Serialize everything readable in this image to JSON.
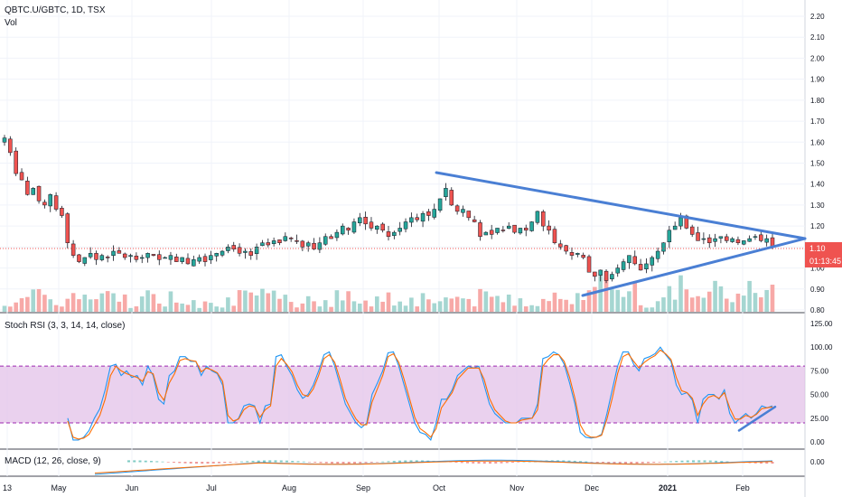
{
  "header": {
    "symbol": "QBTC.U/GBTC, 1D, TSX",
    "volume_label": "Vol"
  },
  "indicators": {
    "stoch_rsi_label": "Stoch RSI (3, 3, 14, 14, close)",
    "macd_label": "MACD (12, 26, close, 9)"
  },
  "price_tags": {
    "last_price": "1.10",
    "countdown": "01:13:45"
  },
  "colors": {
    "up": "#26a69a",
    "down": "#ef5350",
    "trendline": "#4a7fd4",
    "stoch_k": "#2196f3",
    "stoch_d": "#ff6d00",
    "stoch_band": "#e1bee7"
  },
  "chart_data": [
    {
      "type": "candlestick",
      "title": "QBTC.U/GBTC, 1D, TSX",
      "y_axis_ticks": [
        "2.20",
        "2.10",
        "2.00",
        "1.90",
        "1.80",
        "1.70",
        "1.60",
        "1.50",
        "1.40",
        "1.30",
        "1.20",
        "1.10",
        "1.00",
        "0.90",
        "0.80"
      ],
      "ylim": [
        0.8,
        2.2
      ],
      "x_axis_ticks": [
        "13",
        "May",
        "Jun",
        "Jul",
        "Aug",
        "Sep",
        "Oct",
        "Nov",
        "Dec",
        "2021",
        "Feb"
      ],
      "trendlines": [
        {
          "from": {
            "x": "Sep 28",
            "y": 1.46
          },
          "to": {
            "x": "Feb 21",
            "y": 1.15
          }
        },
        {
          "from": {
            "x": "Nov 27",
            "y": 0.87
          },
          "to": {
            "x": "Feb 21",
            "y": 1.15
          }
        }
      ],
      "last_close": 1.1
    },
    {
      "type": "line",
      "title": "Stoch RSI (3, 3, 14, 14, close)",
      "y_axis_ticks": [
        "125.00",
        "100.00",
        "75.00",
        "50.00",
        "25.00",
        "0.00"
      ],
      "ylim": [
        -5,
        125
      ],
      "bands": [
        20,
        80
      ],
      "series": [
        {
          "values": [
            25,
            2,
            2,
            5,
            12,
            25,
            35,
            55,
            80,
            82,
            70,
            75,
            68,
            70,
            60,
            80,
            70,
            45,
            40,
            70,
            75,
            90,
            90,
            85,
            85,
            70,
            80,
            75,
            72,
            60,
            20,
            20,
            25,
            38,
            40,
            38,
            20,
            38,
            40,
            90,
            92,
            80,
            70,
            55,
            46,
            50,
            60,
            75,
            92,
            95,
            80,
            60,
            40,
            30,
            20,
            15,
            20,
            50,
            62,
            75,
            94,
            95,
            80,
            60,
            40,
            20,
            10,
            8,
            2,
            20,
            45,
            45,
            55,
            70,
            75,
            80,
            78,
            80,
            60,
            40,
            30,
            25,
            20,
            20,
            20,
            25,
            25,
            25,
            40,
            88,
            90,
            95,
            92,
            82,
            62,
            40,
            10,
            5,
            4,
            5,
            8,
            30,
            55,
            80,
            95,
            95,
            82,
            75,
            88,
            90,
            93,
            100,
            92,
            85,
            60,
            50,
            52,
            44,
            20,
            45,
            50,
            50,
            45,
            55,
            30,
            20,
            25,
            30,
            25,
            30,
            38,
            36,
            38
          ]
        },
        {
          "values": [
            22,
            5,
            3,
            4,
            8,
            18,
            28,
            45,
            70,
            80,
            75,
            72,
            70,
            68,
            64,
            74,
            72,
            52,
            44,
            62,
            72,
            86,
            88,
            86,
            85,
            74,
            78,
            76,
            73,
            64,
            28,
            22,
            24,
            34,
            38,
            37,
            26,
            34,
            38,
            80,
            88,
            82,
            74,
            60,
            50,
            48,
            56,
            70,
            88,
            92,
            84,
            66,
            46,
            34,
            24,
            18,
            18,
            42,
            56,
            70,
            90,
            93,
            84,
            66,
            46,
            26,
            14,
            10,
            5,
            14,
            36,
            44,
            52,
            66,
            72,
            78,
            78,
            78,
            66,
            46,
            34,
            28,
            22,
            20,
            20,
            23,
            24,
            25,
            34,
            80,
            87,
            92,
            92,
            85,
            68,
            46,
            18,
            8,
            5,
            5,
            7,
            24,
            46,
            72,
            90,
            93,
            85,
            78,
            84,
            88,
            91,
            97,
            93,
            87,
            68,
            54,
            52,
            46,
            28,
            40,
            47,
            49,
            46,
            52,
            36,
            24,
            24,
            28,
            26,
            29,
            35,
            36,
            37
          ]
        }
      ],
      "trendlines": [
        {
          "from": {
            "x": "Feb 3",
            "y": 12
          },
          "to": {
            "x": "Feb 18",
            "y": 37
          }
        }
      ]
    },
    {
      "type": "line",
      "title": "MACD (12, 26, close, 9)",
      "y_axis_ticks": [
        "0.00"
      ],
      "ylim": [
        -0.09,
        0.06
      ]
    }
  ]
}
